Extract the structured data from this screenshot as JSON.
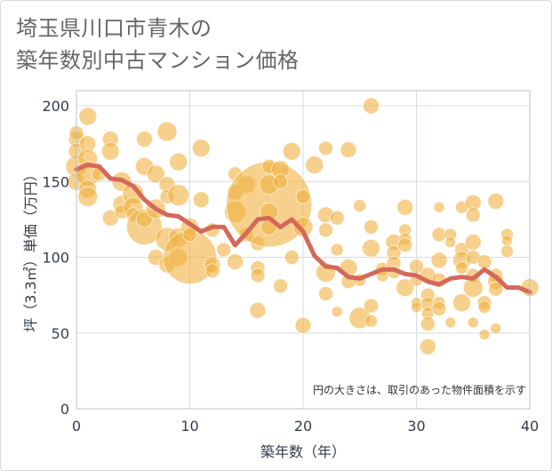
{
  "title_line1": "埼玉県川口市青木の",
  "title_line2": "築年数別中古マンション価格",
  "note": "円の大きさは、取引のあった物件面積を示す",
  "colors": {
    "bubble_fill": "rgba(240,176,64,0.60)",
    "bubble_stroke": "rgba(255,255,255,0.6)",
    "line": "#d4685a",
    "grid": "#d5dce4",
    "plot_border": "#b9c2cc"
  },
  "chart_data": {
    "type": "scatter",
    "xlabel": "築年数（年）",
    "ylabel": "坪（3.3㎡）単価（万円）",
    "xlim": [
      0,
      40
    ],
    "ylim": [
      0,
      210
    ],
    "xticks": [
      0,
      10,
      20,
      30,
      40
    ],
    "yticks": [
      0,
      50,
      100,
      150,
      200
    ],
    "grid": true,
    "series": [
      {
        "kind": "bubble",
        "points": [
          {
            "x": 0,
            "y": 160,
            "r": 12
          },
          {
            "x": 0,
            "y": 150,
            "r": 10
          },
          {
            "x": 0,
            "y": 178,
            "r": 9
          },
          {
            "x": 0,
            "y": 182,
            "r": 8
          },
          {
            "x": 0,
            "y": 170,
            "r": 9
          },
          {
            "x": 1,
            "y": 193,
            "r": 10
          },
          {
            "x": 1,
            "y": 175,
            "r": 9
          },
          {
            "x": 1,
            "y": 165,
            "r": 11
          },
          {
            "x": 1,
            "y": 155,
            "r": 14
          },
          {
            "x": 1,
            "y": 145,
            "r": 10
          },
          {
            "x": 1,
            "y": 140,
            "r": 11
          },
          {
            "x": 2,
            "y": 155,
            "r": 8
          },
          {
            "x": 3,
            "y": 178,
            "r": 9
          },
          {
            "x": 3,
            "y": 170,
            "r": 10
          },
          {
            "x": 3,
            "y": 126,
            "r": 9
          },
          {
            "x": 4,
            "y": 150,
            "r": 11
          },
          {
            "x": 4,
            "y": 135,
            "r": 10
          },
          {
            "x": 4,
            "y": 130,
            "r": 8
          },
          {
            "x": 5,
            "y": 142,
            "r": 12
          },
          {
            "x": 5,
            "y": 133,
            "r": 11
          },
          {
            "x": 5,
            "y": 128,
            "r": 8
          },
          {
            "x": 6,
            "y": 178,
            "r": 9
          },
          {
            "x": 6,
            "y": 160,
            "r": 10
          },
          {
            "x": 6,
            "y": 120,
            "r": 20
          },
          {
            "x": 6,
            "y": 125,
            "r": 9
          },
          {
            "x": 7,
            "y": 155,
            "r": 10
          },
          {
            "x": 7,
            "y": 132,
            "r": 11
          },
          {
            "x": 7,
            "y": 100,
            "r": 9
          },
          {
            "x": 8,
            "y": 183,
            "r": 11
          },
          {
            "x": 8,
            "y": 148,
            "r": 9
          },
          {
            "x": 8,
            "y": 140,
            "r": 8
          },
          {
            "x": 8,
            "y": 112,
            "r": 13
          },
          {
            "x": 8,
            "y": 95,
            "r": 9
          },
          {
            "x": 9,
            "y": 163,
            "r": 10
          },
          {
            "x": 9,
            "y": 141,
            "r": 12
          },
          {
            "x": 9,
            "y": 113,
            "r": 11
          },
          {
            "x": 9,
            "y": 100,
            "r": 10
          },
          {
            "x": 10,
            "y": 100,
            "r": 30
          },
          {
            "x": 10,
            "y": 120,
            "r": 10
          },
          {
            "x": 10,
            "y": 115,
            "r": 8
          },
          {
            "x": 11,
            "y": 172,
            "r": 10
          },
          {
            "x": 11,
            "y": 138,
            "r": 9
          },
          {
            "x": 12,
            "y": 95,
            "r": 9
          },
          {
            "x": 12,
            "y": 91,
            "r": 8
          },
          {
            "x": 12,
            "y": 118,
            "r": 8
          },
          {
            "x": 13,
            "y": 105,
            "r": 8
          },
          {
            "x": 14,
            "y": 155,
            "r": 8
          },
          {
            "x": 14,
            "y": 143,
            "r": 9
          },
          {
            "x": 14,
            "y": 130,
            "r": 12
          },
          {
            "x": 14,
            "y": 97,
            "r": 9
          },
          {
            "x": 15,
            "y": 148,
            "r": 10
          },
          {
            "x": 15,
            "y": 115,
            "r": 8
          },
          {
            "x": 16,
            "y": 93,
            "r": 8
          },
          {
            "x": 16,
            "y": 88,
            "r": 8
          },
          {
            "x": 16,
            "y": 65,
            "r": 9
          },
          {
            "x": 16,
            "y": 109,
            "r": 8
          },
          {
            "x": 17,
            "y": 135,
            "r": 48
          },
          {
            "x": 17,
            "y": 148,
            "r": 11
          },
          {
            "x": 17,
            "y": 130,
            "r": 10
          },
          {
            "x": 17,
            "y": 120,
            "r": 9
          },
          {
            "x": 17,
            "y": 160,
            "r": 8
          },
          {
            "x": 18,
            "y": 158,
            "r": 10
          },
          {
            "x": 18,
            "y": 150,
            "r": 8
          },
          {
            "x": 18,
            "y": 81,
            "r": 8
          },
          {
            "x": 19,
            "y": 170,
            "r": 10
          },
          {
            "x": 19,
            "y": 100,
            "r": 8
          },
          {
            "x": 20,
            "y": 140,
            "r": 8
          },
          {
            "x": 20,
            "y": 120,
            "r": 11
          },
          {
            "x": 20,
            "y": 55,
            "r": 9
          },
          {
            "x": 21,
            "y": 161,
            "r": 10
          },
          {
            "x": 22,
            "y": 172,
            "r": 8
          },
          {
            "x": 22,
            "y": 128,
            "r": 9
          },
          {
            "x": 22,
            "y": 118,
            "r": 8
          },
          {
            "x": 22,
            "y": 90,
            "r": 11
          },
          {
            "x": 22,
            "y": 76,
            "r": 8
          },
          {
            "x": 23,
            "y": 126,
            "r": 8
          },
          {
            "x": 23,
            "y": 105,
            "r": 7
          },
          {
            "x": 23,
            "y": 64,
            "r": 6
          },
          {
            "x": 24,
            "y": 171,
            "r": 9
          },
          {
            "x": 24,
            "y": 93,
            "r": 10
          },
          {
            "x": 24,
            "y": 84,
            "r": 8
          },
          {
            "x": 25,
            "y": 134,
            "r": 7
          },
          {
            "x": 25,
            "y": 85,
            "r": 7
          },
          {
            "x": 25,
            "y": 60,
            "r": 12
          },
          {
            "x": 26,
            "y": 200,
            "r": 9
          },
          {
            "x": 26,
            "y": 120,
            "r": 8
          },
          {
            "x": 26,
            "y": 106,
            "r": 10
          },
          {
            "x": 26,
            "y": 68,
            "r": 8
          },
          {
            "x": 26,
            "y": 58,
            "r": 7
          },
          {
            "x": 27,
            "y": 88,
            "r": 7
          },
          {
            "x": 27,
            "y": 92,
            "r": 8
          },
          {
            "x": 28,
            "y": 110,
            "r": 9
          },
          {
            "x": 28,
            "y": 103,
            "r": 8
          },
          {
            "x": 28,
            "y": 96,
            "r": 8
          },
          {
            "x": 28,
            "y": 90,
            "r": 7
          },
          {
            "x": 29,
            "y": 133,
            "r": 9
          },
          {
            "x": 29,
            "y": 118,
            "r": 7
          },
          {
            "x": 29,
            "y": 112,
            "r": 7
          },
          {
            "x": 29,
            "y": 108,
            "r": 8
          },
          {
            "x": 29,
            "y": 80,
            "r": 10
          },
          {
            "x": 30,
            "y": 94,
            "r": 8
          },
          {
            "x": 30,
            "y": 85,
            "r": 7
          },
          {
            "x": 30,
            "y": 70,
            "r": 6
          },
          {
            "x": 30,
            "y": 67,
            "r": 6
          },
          {
            "x": 31,
            "y": 88,
            "r": 9
          },
          {
            "x": 31,
            "y": 75,
            "r": 8
          },
          {
            "x": 31,
            "y": 69,
            "r": 8
          },
          {
            "x": 31,
            "y": 63,
            "r": 7
          },
          {
            "x": 31,
            "y": 56,
            "r": 8
          },
          {
            "x": 31,
            "y": 41,
            "r": 9
          },
          {
            "x": 32,
            "y": 133,
            "r": 6
          },
          {
            "x": 32,
            "y": 115,
            "r": 8
          },
          {
            "x": 32,
            "y": 98,
            "r": 9
          },
          {
            "x": 32,
            "y": 85,
            "r": 8
          },
          {
            "x": 32,
            "y": 70,
            "r": 7
          },
          {
            "x": 32,
            "y": 66,
            "r": 8
          },
          {
            "x": 33,
            "y": 115,
            "r": 7
          },
          {
            "x": 33,
            "y": 110,
            "r": 6
          },
          {
            "x": 33,
            "y": 57,
            "r": 6
          },
          {
            "x": 34,
            "y": 133,
            "r": 7
          },
          {
            "x": 34,
            "y": 105,
            "r": 8
          },
          {
            "x": 34,
            "y": 98,
            "r": 10
          },
          {
            "x": 34,
            "y": 93,
            "r": 7
          },
          {
            "x": 34,
            "y": 70,
            "r": 10
          },
          {
            "x": 35,
            "y": 136,
            "r": 9
          },
          {
            "x": 35,
            "y": 128,
            "r": 8
          },
          {
            "x": 35,
            "y": 110,
            "r": 9
          },
          {
            "x": 35,
            "y": 100,
            "r": 8
          },
          {
            "x": 35,
            "y": 88,
            "r": 8
          },
          {
            "x": 35,
            "y": 80,
            "r": 11
          },
          {
            "x": 35,
            "y": 57,
            "r": 6
          },
          {
            "x": 36,
            "y": 97,
            "r": 8
          },
          {
            "x": 36,
            "y": 70,
            "r": 8
          },
          {
            "x": 36,
            "y": 67,
            "r": 7
          },
          {
            "x": 36,
            "y": 49,
            "r": 6
          },
          {
            "x": 37,
            "y": 137,
            "r": 9
          },
          {
            "x": 37,
            "y": 88,
            "r": 8
          },
          {
            "x": 37,
            "y": 84,
            "r": 9
          },
          {
            "x": 37,
            "y": 79,
            "r": 8
          },
          {
            "x": 37,
            "y": 53,
            "r": 6
          },
          {
            "x": 38,
            "y": 115,
            "r": 7
          },
          {
            "x": 38,
            "y": 111,
            "r": 6
          },
          {
            "x": 38,
            "y": 104,
            "r": 7
          },
          {
            "x": 40,
            "y": 80,
            "r": 10
          }
        ]
      },
      {
        "kind": "line",
        "x": [
          0,
          1,
          2,
          3,
          4,
          5,
          6,
          7,
          8,
          9,
          10,
          11,
          12,
          13,
          14,
          15,
          16,
          17,
          18,
          19,
          20,
          21,
          22,
          23,
          24,
          25,
          26,
          27,
          28,
          29,
          30,
          31,
          32,
          33,
          34,
          35,
          36,
          37,
          38,
          39,
          40
        ],
        "y": [
          158,
          161,
          160,
          152,
          151,
          147,
          138,
          132,
          128,
          127,
          122,
          117,
          120,
          120,
          108,
          116,
          125,
          126,
          120,
          125,
          117,
          101,
          94,
          93,
          87,
          86,
          89,
          92,
          92,
          89,
          88,
          84,
          82,
          86,
          87,
          86,
          92,
          87,
          80,
          80,
          77
        ]
      }
    ]
  }
}
